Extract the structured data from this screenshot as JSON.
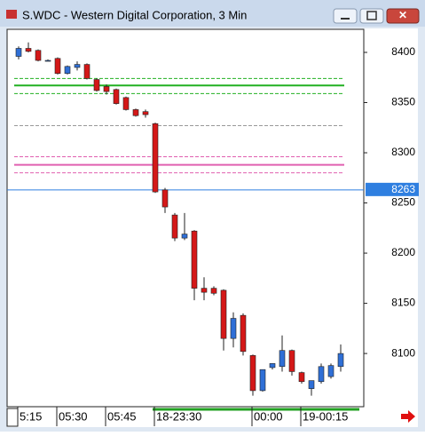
{
  "window": {
    "title": "S.WDC - Western Digital Corporation, 3 Min"
  },
  "chart_data": {
    "type": "candlestick",
    "categories": [
      "5:15",
      null,
      null,
      null,
      "05:30",
      null,
      null,
      null,
      null,
      "05:45",
      null,
      null,
      null,
      null,
      "18-23:30",
      null,
      null,
      null,
      null,
      null,
      null,
      null,
      null,
      null,
      "00:00",
      null,
      null,
      null,
      null,
      "19-00:15",
      null,
      null,
      null,
      null
    ],
    "open": [
      8396,
      8404,
      8402,
      8392,
      8394,
      8379,
      8385,
      8388,
      8373,
      8366,
      8363,
      8355,
      8343,
      8341,
      8329,
      8263,
      8238,
      8215,
      8222,
      8165,
      8165,
      8163,
      8115,
      8138,
      8098,
      8063,
      8086,
      8087,
      8103,
      8081,
      8065,
      8072,
      8077,
      8087
    ],
    "high": [
      8406,
      8410,
      8403,
      8393,
      8395,
      8387,
      8391,
      8389,
      8374,
      8368,
      8364,
      8356,
      8344,
      8343,
      8330,
      8265,
      8240,
      8240,
      8223,
      8176,
      8167,
      8164,
      8141,
      8140,
      8099,
      8084,
      8090,
      8118,
      8104,
      8082,
      8073,
      8090,
      8090,
      8109
    ],
    "low": [
      8393,
      8400,
      8391,
      8391,
      8378,
      8378,
      8382,
      8373,
      8361,
      8358,
      8348,
      8342,
      8336,
      8335,
      8260,
      8240,
      8212,
      8213,
      8153,
      8153,
      8158,
      8103,
      8106,
      8098,
      8058,
      8062,
      8084,
      8082,
      8078,
      8070,
      8058,
      8070,
      8075,
      8082
    ],
    "close": [
      8404,
      8401,
      8392,
      8392,
      8379,
      8386,
      8388,
      8374,
      8362,
      8361,
      8349,
      8343,
      8337,
      8338,
      8261,
      8246,
      8215,
      8219,
      8165,
      8161,
      8160,
      8115,
      8135,
      8102,
      8063,
      8084,
      8090,
      8103,
      8082,
      8072,
      8073,
      8087,
      8088,
      8100
    ],
    "up_color": "#2f6fd6",
    "down_color": "#d41818",
    "levels": [
      {
        "value": 8374,
        "color": "#22b022",
        "width": 1,
        "dashed": true
      },
      {
        "value": 8367,
        "color": "#22b022",
        "width": 2,
        "dashed": false
      },
      {
        "value": 8359,
        "color": "#22b022",
        "width": 1,
        "dashed": true
      },
      {
        "value": 8327,
        "color": "#999999",
        "width": 1,
        "dashed": true
      },
      {
        "value": 8296,
        "color": "#e060b0",
        "width": 1,
        "dashed": true
      },
      {
        "value": 8288,
        "color": "#e060b0",
        "width": 2,
        "dashed": false
      },
      {
        "value": 8280,
        "color": "#e060b0",
        "width": 1,
        "dashed": true
      }
    ],
    "current_price": 8263,
    "current_color": "#2f7fe0",
    "ylim": [
      8047,
      8423
    ],
    "yticks": [
      8100,
      8150,
      8200,
      8250,
      8300,
      8350,
      8400
    ]
  }
}
